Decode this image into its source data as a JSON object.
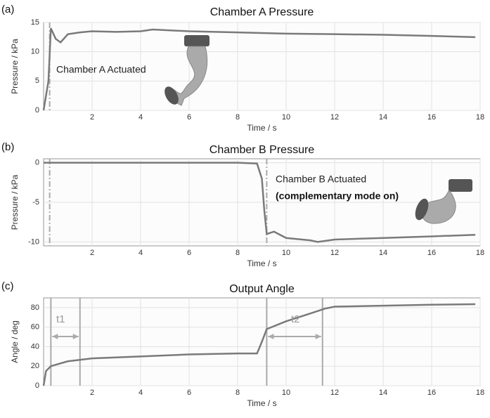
{
  "chart_data": [
    {
      "type": "line",
      "panel_label": "(a)",
      "title": "Chamber A Pressure",
      "xlabel": "Time / s",
      "ylabel": "Pressure / kPa",
      "xlim": [
        0,
        18
      ],
      "xticks": [
        2,
        4,
        6,
        8,
        10,
        12,
        14,
        16,
        18
      ],
      "ylim": [
        0,
        15
      ],
      "yticks": [
        0,
        5,
        10,
        15
      ],
      "grid": true,
      "series": [
        {
          "color": "#7a7a7a",
          "x": [
            0,
            0.2,
            0.3,
            0.5,
            0.7,
            1,
            1.5,
            2,
            3,
            4,
            4.5,
            6,
            8,
            10,
            12,
            14,
            16,
            17.8
          ],
          "values": [
            0,
            5,
            14,
            12.2,
            11.6,
            13,
            13.3,
            13.5,
            13.4,
            13.5,
            13.8,
            13.5,
            13.3,
            13.1,
            13,
            12.9,
            12.7,
            12.5
          ]
        }
      ],
      "vlines": [
        0.25
      ],
      "vline_dash": true,
      "annotations": [
        "Chamber A Actuated"
      ]
    },
    {
      "type": "line",
      "panel_label": "(b)",
      "title": "Chamber B Pressure",
      "xlabel": "Time / s",
      "ylabel": "Pressure / kPa",
      "xlim": [
        0,
        18
      ],
      "xticks": [
        2,
        4,
        6,
        8,
        10,
        12,
        14,
        16,
        18
      ],
      "ylim": [
        -10.5,
        0.5
      ],
      "yticks": [
        0,
        -5,
        -10
      ],
      "grid": true,
      "series": [
        {
          "color": "#7a7a7a",
          "x": [
            0,
            2,
            4,
            6,
            8,
            8.8,
            9.0,
            9.1,
            9.2,
            9.5,
            10,
            11,
            11.3,
            12,
            14,
            16,
            17.8
          ],
          "values": [
            0,
            0,
            0,
            0,
            0,
            -0.1,
            -2,
            -6,
            -9,
            -8.7,
            -9.5,
            -9.8,
            -10,
            -9.7,
            -9.5,
            -9.3,
            -9.1
          ]
        }
      ],
      "vlines": [
        0.25,
        9.2
      ],
      "vline_dash": true,
      "annotations": [
        "Chamber B Actuated",
        "(complementary mode on)"
      ]
    },
    {
      "type": "line",
      "panel_label": "(c)",
      "title": "Output Angle",
      "xlabel": "Time / s",
      "ylabel": "Angle / deg",
      "xlim": [
        0,
        18
      ],
      "xticks": [
        2,
        4,
        6,
        8,
        10,
        12,
        14,
        16,
        18
      ],
      "ylim": [
        0,
        90
      ],
      "yticks": [
        0,
        20,
        40,
        60,
        80
      ],
      "grid": true,
      "series": [
        {
          "color": "#7a7a7a",
          "x": [
            0,
            0.1,
            0.3,
            1,
            2,
            4,
            6,
            8,
            8.8,
            9,
            9.2,
            10,
            11,
            11.6,
            12,
            14,
            16,
            17.8
          ],
          "values": [
            0,
            15,
            20,
            25,
            28,
            30,
            32,
            33,
            33,
            45,
            58,
            66,
            74,
            79,
            81,
            82,
            83,
            83.5
          ]
        }
      ],
      "vlines": [
        0.3,
        1.5,
        9.2,
        11.5
      ],
      "vline_dash": false,
      "annotations": [
        "t1",
        "t2"
      ]
    }
  ]
}
